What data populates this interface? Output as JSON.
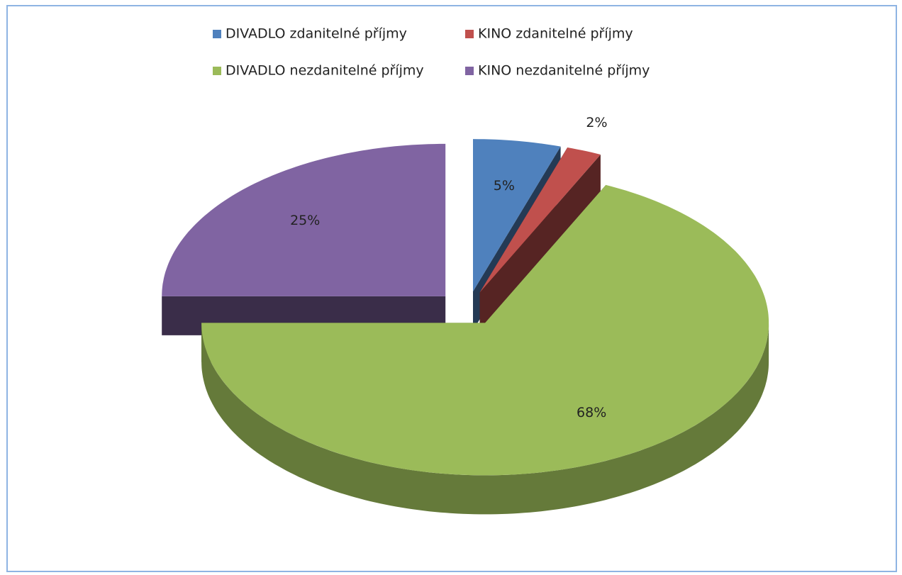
{
  "chart_data": {
    "type": "pie",
    "categories": [
      "DIVADLO zdanitelné příjmy",
      "KINO zdanitelné příjmy",
      "DIVADLO nezdanitelné příjmy",
      "KINO nezdanitelné příjmy"
    ],
    "values": [
      5,
      2,
      68,
      25
    ],
    "value_labels": [
      "5%",
      "2%",
      "68%",
      "25%"
    ],
    "colors": [
      "#4f81bd",
      "#c0504d",
      "#9bbb59",
      "#8064a2"
    ],
    "legend": "top"
  }
}
